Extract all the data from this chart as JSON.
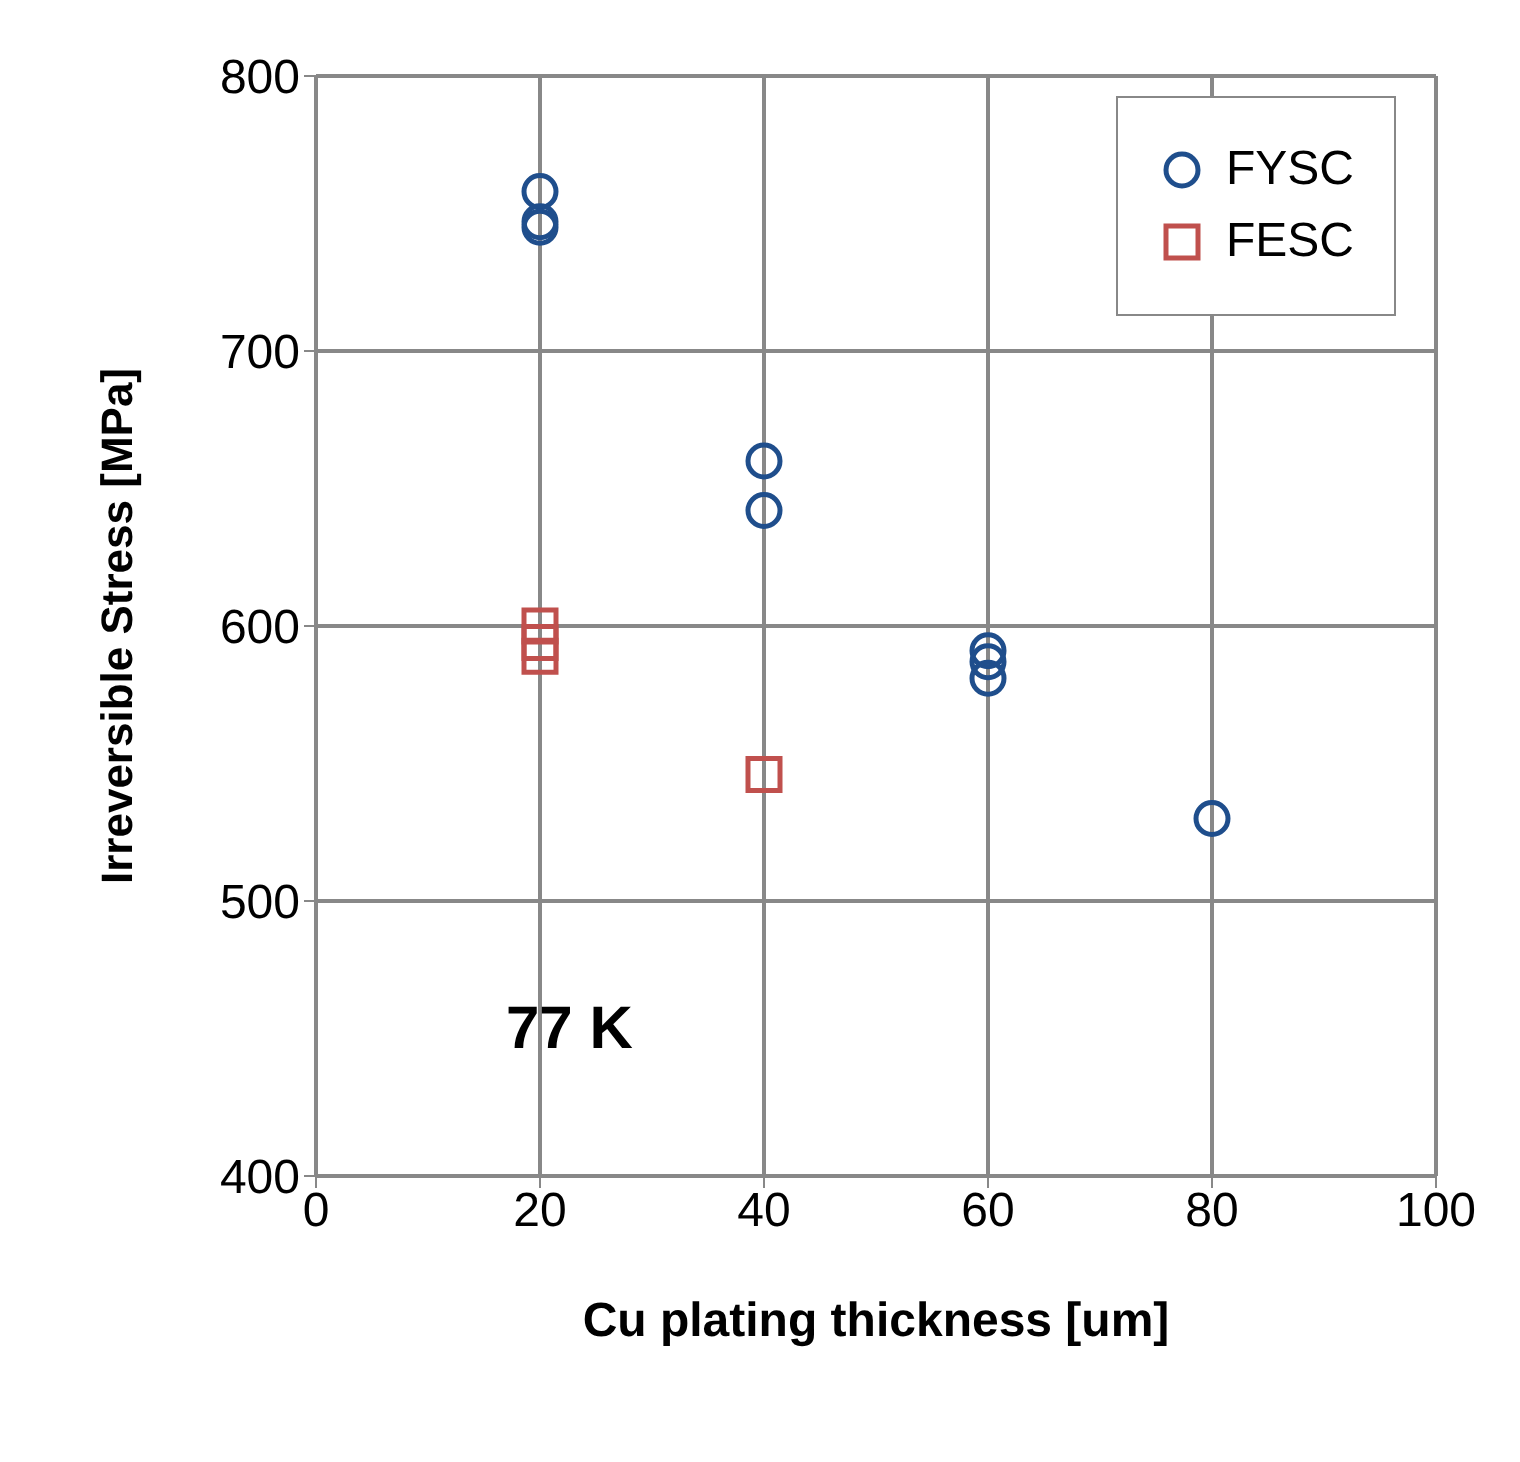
{
  "chart_data": {
    "type": "scatter",
    "xlabel": "Cu plating thickness [um]",
    "ylabel": "Irreversible Stress [MPa]",
    "series": [
      {
        "name": "FYSC",
        "color": "#1f4e8c",
        "marker": "circle",
        "x": [
          20,
          20,
          20,
          40,
          40,
          60,
          60,
          60,
          80
        ],
        "values": [
          758,
          747,
          745,
          660,
          642,
          591,
          587,
          581,
          530
        ]
      },
      {
        "name": "FESC",
        "color": "#c0504d",
        "marker": "square",
        "x": [
          20,
          20,
          20,
          40
        ],
        "values": [
          600,
          594,
          589,
          546
        ]
      }
    ],
    "xlim": [
      0,
      100
    ],
    "xticks": [
      0,
      20,
      40,
      60,
      80,
      100
    ],
    "ylim": [
      400,
      800
    ],
    "yticks": [
      400,
      500,
      600,
      700,
      800
    ],
    "grid": true,
    "legend": "top right",
    "annotations": [
      "77 K"
    ]
  }
}
